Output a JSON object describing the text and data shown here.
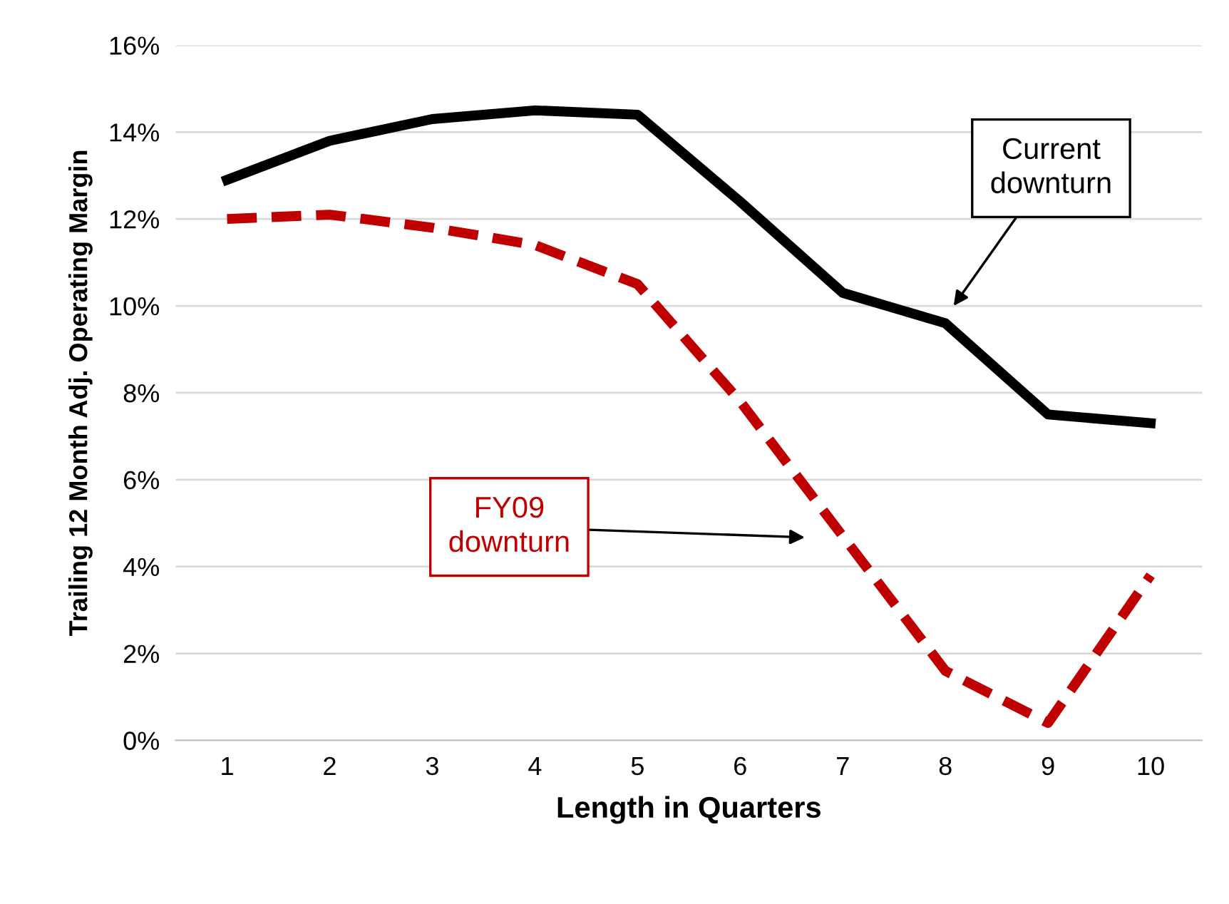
{
  "chart_data": {
    "type": "line",
    "xlabel": "Length in Quarters",
    "ylabel": "Trailing 12 Month Adj. Operating Margin",
    "x": [
      1,
      2,
      3,
      4,
      5,
      6,
      7,
      8,
      9,
      10
    ],
    "series": [
      {
        "color": "#000000",
        "line_style": "solid",
        "values": [
          12.9,
          13.8,
          14.3,
          14.5,
          14.4,
          12.4,
          10.3,
          9.6,
          7.5,
          7.3
        ]
      },
      {
        "color": "#c00000",
        "line_style": "dashed",
        "values": [
          12.0,
          12.1,
          11.8,
          11.4,
          10.5,
          7.8,
          4.7,
          1.6,
          0.4,
          3.8
        ]
      }
    ],
    "xlim": [
      0.5,
      10.5
    ],
    "xticks": [
      1,
      2,
      3,
      4,
      5,
      6,
      7,
      8,
      9,
      10
    ],
    "ylim": [
      0,
      16
    ],
    "yticks": [
      {
        "value": 0,
        "label": "0%"
      },
      {
        "value": 2,
        "label": "2%"
      },
      {
        "value": 4,
        "label": "4%"
      },
      {
        "value": 6,
        "label": "6%"
      },
      {
        "value": 8,
        "label": "8%"
      },
      {
        "value": 10,
        "label": "10%"
      },
      {
        "value": 12,
        "label": "12%"
      },
      {
        "value": 14,
        "label": "14%"
      },
      {
        "value": 16,
        "label": "16%"
      }
    ],
    "grid": "y",
    "marker": "none",
    "annotations": [
      "Current\ndownturn",
      "FY09\ndownturn"
    ]
  }
}
